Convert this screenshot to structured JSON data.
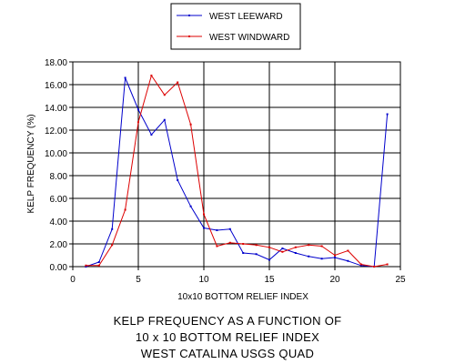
{
  "chart_data": {
    "type": "line",
    "title": "",
    "xlabel": "10x10 BOTTOM RELIEF INDEX",
    "ylabel": "KELP FREQUENCY (%)",
    "xlim": [
      0,
      25
    ],
    "ylim": [
      0,
      18
    ],
    "x_ticks": [
      0,
      5,
      10,
      15,
      20,
      25
    ],
    "y_ticks": [
      0,
      2,
      4,
      6,
      8,
      10,
      12,
      14,
      16,
      18
    ],
    "x_tick_labels": [
      "0",
      "5",
      "10",
      "15",
      "20",
      "25"
    ],
    "y_tick_labels": [
      "0.00",
      "2.00",
      "4.00",
      "6.00",
      "8.00",
      "10.00",
      "12.00",
      "14.00",
      "16.00",
      "18.00"
    ],
    "grid": true,
    "legend_position": "top-center",
    "series": [
      {
        "name": "WEST LEEWARD",
        "color": "#0000cc",
        "x": [
          1,
          2,
          3,
          4,
          5,
          6,
          7,
          8,
          9,
          10,
          11,
          12,
          13,
          14,
          15,
          16,
          17,
          18,
          19,
          20,
          21,
          22,
          23,
          24
        ],
        "y": [
          0.0,
          0.4,
          3.3,
          16.6,
          13.8,
          11.6,
          12.9,
          7.6,
          5.3,
          3.4,
          3.2,
          3.3,
          1.2,
          1.1,
          0.6,
          1.6,
          1.2,
          0.9,
          0.7,
          0.8,
          0.5,
          0.1,
          0.0,
          13.4
        ]
      },
      {
        "name": "WEST WINDWARD",
        "color": "#dd0000",
        "x": [
          1,
          2,
          3,
          4,
          5,
          6,
          7,
          8,
          9,
          10,
          11,
          12,
          13,
          14,
          15,
          16,
          17,
          18,
          19,
          20,
          21,
          22,
          23,
          24
        ],
        "y": [
          0.1,
          0.1,
          1.9,
          5.0,
          12.7,
          16.8,
          15.1,
          16.2,
          12.5,
          4.6,
          1.8,
          2.1,
          2.0,
          1.9,
          1.7,
          1.3,
          1.7,
          1.9,
          1.8,
          1.0,
          1.4,
          0.2,
          0.0,
          0.2
        ]
      }
    ]
  },
  "caption": {
    "line1": "KELP FREQUENCY  AS A FUNCTION OF",
    "line2": "10 x 10  BOTTOM  RELIEF  INDEX",
    "line3": "WEST CATALINA  USGS QUAD"
  }
}
